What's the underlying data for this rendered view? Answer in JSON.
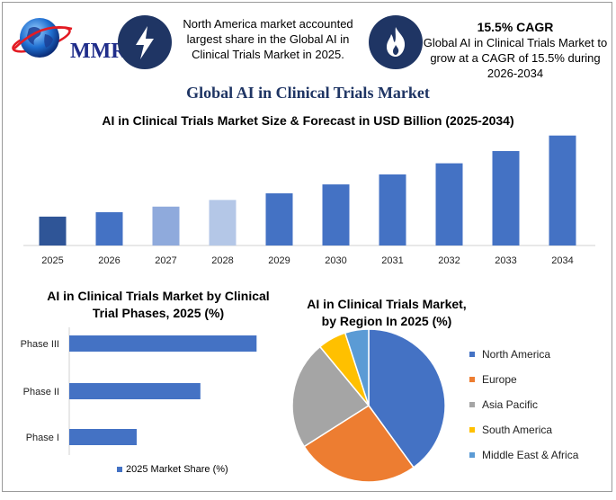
{
  "logo": {
    "text": "MMR"
  },
  "info_left": {
    "icon": "lightning-bolt-icon",
    "text": "North America market accounted largest share in the Global AI in Clinical Trials Market in 2025."
  },
  "info_right": {
    "icon": "flame-icon",
    "title": "15.5% CAGR",
    "text": "Global AI in Clinical Trials Market to grow at a CAGR of 15.5% during 2026-2034"
  },
  "main_title": "Global AI in Clinical Trials Market",
  "chart_data": [
    {
      "type": "bar",
      "title": "AI in Clinical Trials Market Size & Forecast in USD Billion (2025-2034)",
      "categories": [
        "2025",
        "2026",
        "2027",
        "2028",
        "2029",
        "2030",
        "2031",
        "2032",
        "2033",
        "2034"
      ],
      "values": [
        2.6,
        3.0,
        3.5,
        4.1,
        4.7,
        5.5,
        6.4,
        7.4,
        8.5,
        9.9
      ],
      "bar_colors": [
        "#2f5597",
        "#4472c4",
        "#8faadc",
        "#b4c7e7",
        "#4472c4",
        "#4472c4",
        "#4472c4",
        "#4472c4",
        "#4472c4",
        "#4472c4"
      ],
      "ylim": [
        0,
        10.2
      ],
      "grid": false
    },
    {
      "type": "bar",
      "orientation": "horizontal",
      "title": "AI in Clinical Trials Market by Clinical Trial Phases, 2025 (%)",
      "categories": [
        "Phase III",
        "Phase II",
        "Phase I"
      ],
      "series": [
        {
          "name": "2025 Market Share (%)",
          "values": [
            50,
            35,
            18
          ],
          "color": "#4472c4"
        }
      ],
      "xlim": [
        0,
        60
      ],
      "legend": "bottom"
    },
    {
      "type": "pie",
      "title": "AI in Clinical Trials Market, by Region In 2025 (%)",
      "labels": [
        "North America",
        "Europe",
        "Asia Pacific",
        "South America",
        "Middle East & Africa"
      ],
      "values": [
        40,
        26,
        23,
        6,
        5
      ],
      "colors": [
        "#4472c4",
        "#ed7d31",
        "#a5a5a5",
        "#ffc000",
        "#5b9bd5"
      ],
      "legend": "right"
    }
  ]
}
